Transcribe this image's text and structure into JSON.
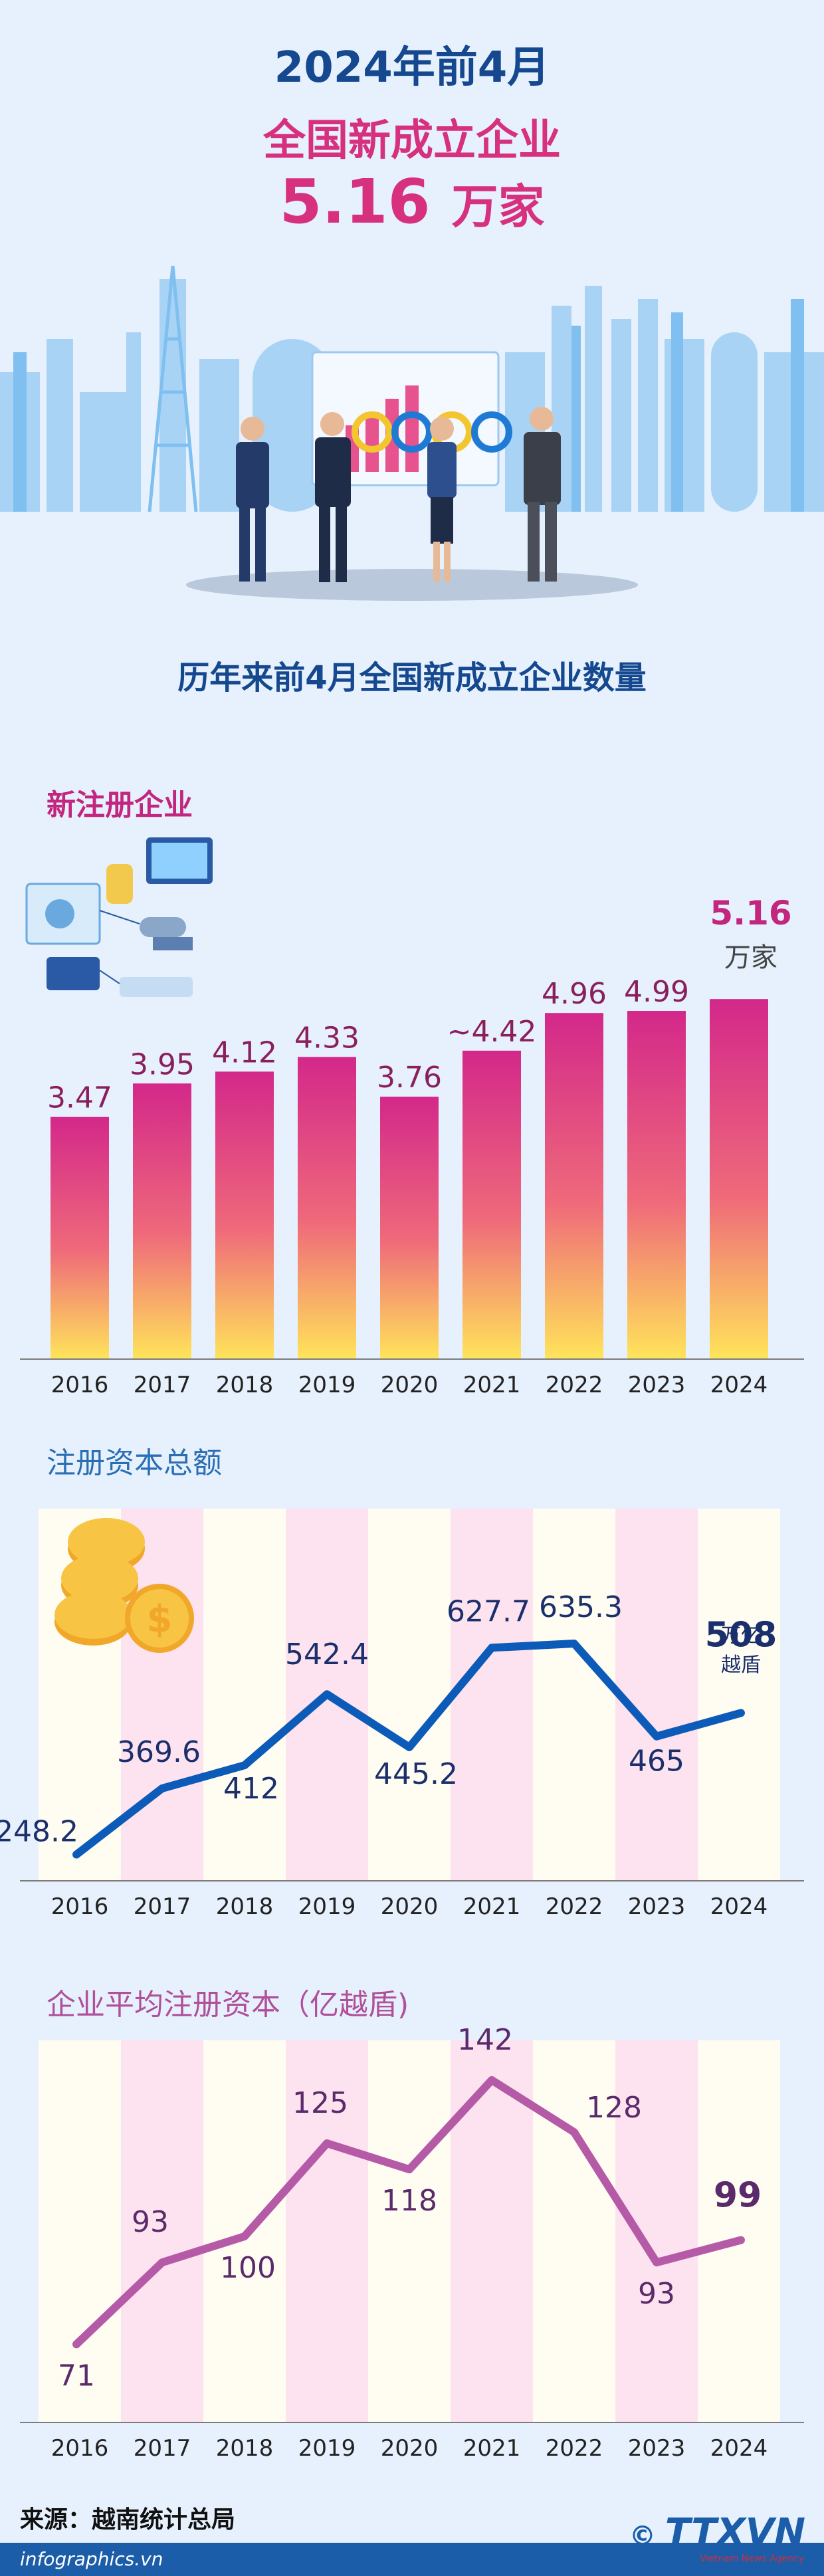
{
  "header": {
    "line1": "2024年前4月",
    "line2": "全国新成立企业",
    "big_value": "5.16",
    "big_unit": "万家"
  },
  "subtitle": "历年来前4月全国新成立企业数量",
  "chart_data": [
    {
      "type": "bar",
      "title": "新注册企业",
      "categories": [
        "2016",
        "2017",
        "2018",
        "2019",
        "2020",
        "2021",
        "2022",
        "2023",
        "2024"
      ],
      "values": [
        3.47,
        3.95,
        4.12,
        4.33,
        3.76,
        4.42,
        4.96,
        4.99,
        5.16
      ],
      "labels": [
        "3.47",
        "3.95",
        "4.12",
        "4.33",
        "3.76",
        "~4.42",
        "4.96",
        "4.99",
        "5.16"
      ],
      "highlight_label": "5.16",
      "highlight_unit": "万家",
      "colors": {
        "top": "#d3288a",
        "bottom": "#ffe45a"
      }
    },
    {
      "type": "line",
      "title": "注册资本总额",
      "categories": [
        "2016",
        "2017",
        "2018",
        "2019",
        "2020",
        "2021",
        "2022",
        "2023",
        "2024"
      ],
      "values": [
        248.2,
        369.6,
        412,
        542.4,
        445.2,
        627.7,
        635.3,
        465,
        508
      ],
      "labels": [
        "248.2",
        "369.6",
        "412",
        "542.4",
        "445.2",
        "627.7",
        "635.3",
        "465",
        "508"
      ],
      "highlight_unit_lines": [
        "万亿",
        "越盾"
      ],
      "colors": {
        "line": "#0d5bb8",
        "label": "#1a2f6b"
      }
    },
    {
      "type": "line",
      "title": "企业平均注册资本（亿越盾)",
      "categories": [
        "2016",
        "2017",
        "2018",
        "2019",
        "2020",
        "2021",
        "2022",
        "2023",
        "2024"
      ],
      "values": [
        71,
        93,
        100,
        125,
        118,
        142,
        128,
        93,
        99
      ],
      "labels": [
        "71",
        "93",
        "100",
        "125",
        "118",
        "142",
        "128",
        "93",
        "99"
      ],
      "colors": {
        "line": "#b55aa7",
        "label": "#5a2a6b"
      }
    }
  ],
  "footer": {
    "source": "来源：越南统计总局",
    "site": "infographics.vn",
    "logo_symbol": "©",
    "logo": "TTXVN",
    "logo_sub": "Vietnam News Agency"
  }
}
